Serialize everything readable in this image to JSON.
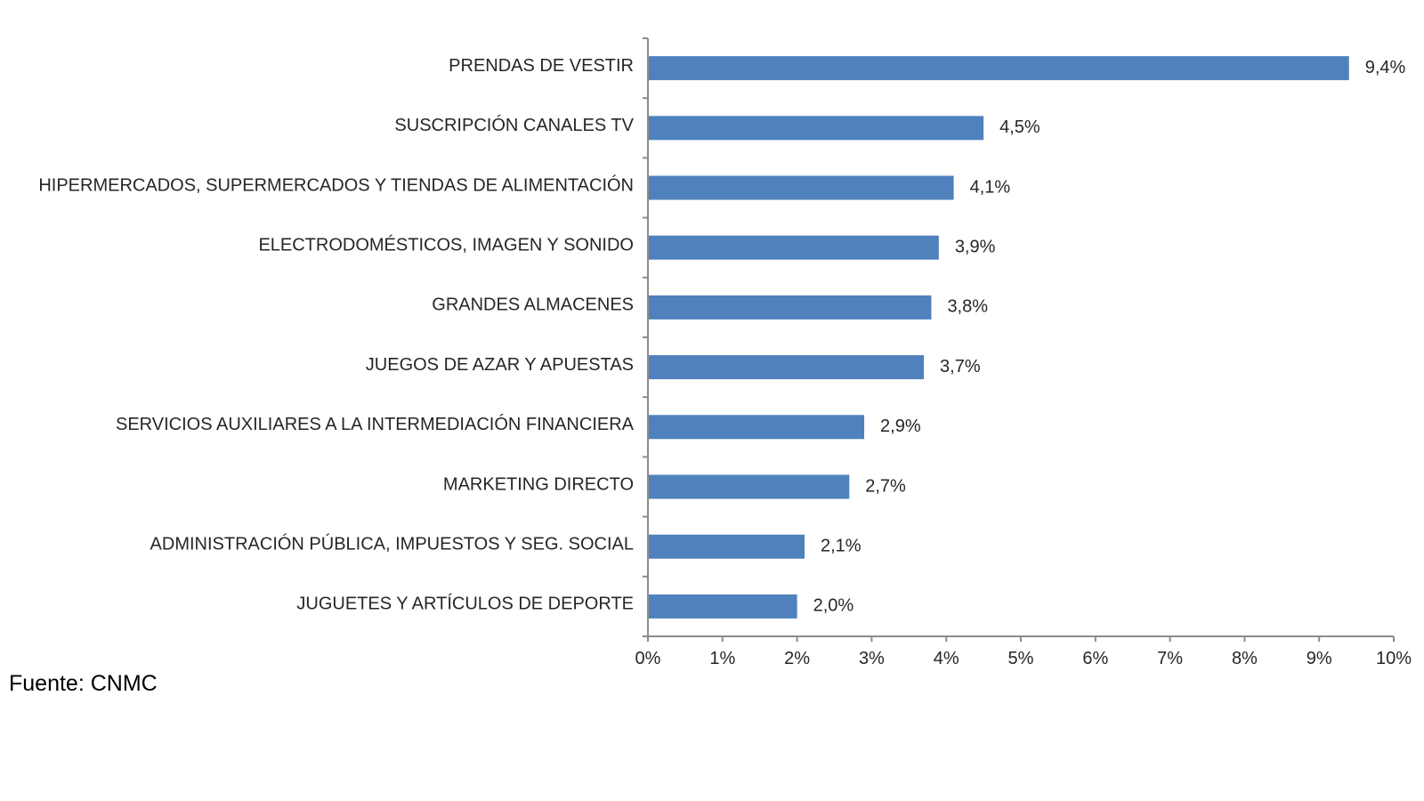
{
  "source": "Fuente: CNMC",
  "colors": {
    "bar": "#4f81bd",
    "axis": "#8c8c8c",
    "text": "#262626"
  },
  "chart_data": {
    "type": "bar",
    "orientation": "horizontal",
    "categories": [
      "PRENDAS DE VESTIR",
      "SUSCRIPCIÓN CANALES TV",
      "HIPERMERCADOS, SUPERMERCADOS Y TIENDAS DE ALIMENTACIÓN",
      "ELECTRODOMÉSTICOS,  IMAGEN Y SONIDO",
      "GRANDES ALMACENES",
      "JUEGOS DE AZAR Y APUESTAS",
      "SERVICIOS AUXILIARES A LA INTERMEDIACIÓN FINANCIERA",
      "MARKETING DIRECTO",
      "ADMINISTRACIÓN PÚBLICA, IMPUESTOS Y SEG. SOCIAL",
      "JUGUETES Y ARTÍCULOS DE DEPORTE"
    ],
    "values": [
      9.4,
      4.5,
      4.1,
      3.9,
      3.8,
      3.7,
      2.9,
      2.7,
      2.1,
      2.0
    ],
    "value_labels": [
      "9,4%",
      "4,5%",
      "4,1%",
      "3,9%",
      "3,8%",
      "3,7%",
      "2,9%",
      "2,7%",
      "2,1%",
      "2,0%"
    ],
    "xlim": [
      0,
      10
    ],
    "x_ticks": [
      "0%",
      "1%",
      "2%",
      "3%",
      "4%",
      "5%",
      "6%",
      "7%",
      "8%",
      "9%",
      "10%"
    ],
    "grid": false,
    "legend": "none"
  }
}
